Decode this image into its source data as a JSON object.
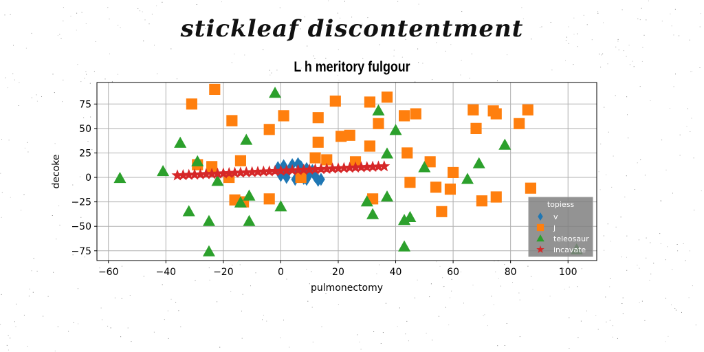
{
  "suptitle": "stickleaf discontentment",
  "chart_data": {
    "type": "scatter",
    "title": "L h meritory fulgour",
    "xlabel": "pulmonectomy",
    "ylabel": "decoke",
    "xlim": [
      -64,
      110
    ],
    "ylim": [
      -85,
      97
    ],
    "xticks": [
      -60,
      -40,
      -20,
      0,
      20,
      40,
      60,
      80,
      100
    ],
    "yticks": [
      -75,
      -50,
      -25,
      0,
      25,
      50,
      75
    ],
    "grid": true,
    "legend": {
      "title": "topiess",
      "placement": "lower-right"
    },
    "series": [
      {
        "name": "v",
        "marker": "diamond",
        "color": "#1f77b4",
        "points": [
          [
            -1,
            10
          ],
          [
            0,
            2
          ],
          [
            1,
            12
          ],
          [
            2,
            0
          ],
          [
            3,
            8
          ],
          [
            4,
            13
          ],
          [
            5,
            -2
          ],
          [
            6,
            5
          ],
          [
            7,
            11
          ],
          [
            8,
            -1
          ],
          [
            9,
            9
          ],
          [
            10,
            3
          ],
          [
            11,
            7
          ],
          [
            12,
            1
          ],
          [
            13,
            -3
          ],
          [
            14,
            -2
          ],
          [
            2,
            5
          ],
          [
            6,
            14
          ],
          [
            9,
            -2
          ]
        ]
      },
      {
        "name": "j",
        "marker": "square",
        "color": "#ff7f0e",
        "points": [
          [
            -23,
            90
          ],
          [
            -31,
            75
          ],
          [
            -17,
            58
          ],
          [
            -14,
            17
          ],
          [
            -4,
            49
          ],
          [
            1,
            63
          ],
          [
            13,
            61
          ],
          [
            13,
            36
          ],
          [
            19,
            78
          ],
          [
            21,
            42
          ],
          [
            24,
            43
          ],
          [
            26,
            16
          ],
          [
            31,
            77
          ],
          [
            31,
            32
          ],
          [
            32,
            -22
          ],
          [
            34,
            55
          ],
          [
            37,
            82
          ],
          [
            43,
            63
          ],
          [
            44,
            25
          ],
          [
            45,
            -5
          ],
          [
            47,
            65
          ],
          [
            52,
            16
          ],
          [
            54,
            -10
          ],
          [
            56,
            -35
          ],
          [
            59,
            -12
          ],
          [
            60,
            5
          ],
          [
            67,
            69
          ],
          [
            68,
            50
          ],
          [
            70,
            -24
          ],
          [
            74,
            68
          ],
          [
            75,
            -20
          ],
          [
            75,
            65
          ],
          [
            83,
            55
          ],
          [
            86,
            69
          ],
          [
            87,
            -11
          ],
          [
            -16,
            -23
          ],
          [
            -13,
            -25
          ],
          [
            -4,
            -22
          ],
          [
            -18,
            0
          ],
          [
            -24,
            11
          ],
          [
            -29,
            13
          ],
          [
            7,
            0
          ],
          [
            12,
            20
          ],
          [
            16,
            18
          ]
        ]
      },
      {
        "name": "teleosaur",
        "marker": "triangle",
        "color": "#2ca02c",
        "points": [
          [
            -56,
            -1
          ],
          [
            -41,
            6
          ],
          [
            -35,
            35
          ],
          [
            -32,
            -35
          ],
          [
            -29,
            16
          ],
          [
            -25,
            -45
          ],
          [
            -25,
            -76
          ],
          [
            -22,
            -4
          ],
          [
            -14,
            -26
          ],
          [
            -12,
            38
          ],
          [
            -11,
            -19
          ],
          [
            -11,
            -45
          ],
          [
            -2,
            86
          ],
          [
            0,
            -30
          ],
          [
            30,
            -25
          ],
          [
            32,
            -38
          ],
          [
            34,
            68
          ],
          [
            37,
            24
          ],
          [
            37,
            -20
          ],
          [
            40,
            48
          ],
          [
            43,
            -44
          ],
          [
            43,
            -71
          ],
          [
            45,
            -41
          ],
          [
            50,
            10
          ],
          [
            65,
            -2
          ],
          [
            69,
            14
          ],
          [
            78,
            33
          ],
          [
            103,
            -74
          ]
        ]
      },
      {
        "name": "incavate",
        "marker": "star",
        "color": "#d62728",
        "points": [
          [
            -36,
            2
          ],
          [
            -34,
            2.2
          ],
          [
            -32,
            2.5
          ],
          [
            -30,
            2.8
          ],
          [
            -28,
            3
          ],
          [
            -26,
            3.3
          ],
          [
            -24,
            3.5
          ],
          [
            -22,
            3.8
          ],
          [
            -20,
            4
          ],
          [
            -18,
            4.3
          ],
          [
            -16,
            4.6
          ],
          [
            -14,
            4.8
          ],
          [
            -12,
            5.1
          ],
          [
            -10,
            5.3
          ],
          [
            -8,
            5.6
          ],
          [
            -6,
            5.9
          ],
          [
            -4,
            6.1
          ],
          [
            -2,
            6.4
          ],
          [
            0,
            6.6
          ],
          [
            2,
            6.9
          ],
          [
            4,
            7.2
          ],
          [
            6,
            7.4
          ],
          [
            8,
            7.7
          ],
          [
            10,
            7.9
          ],
          [
            12,
            8.2
          ],
          [
            14,
            8.5
          ],
          [
            16,
            8.7
          ],
          [
            18,
            9
          ],
          [
            20,
            9.2
          ],
          [
            22,
            9.5
          ],
          [
            24,
            9.8
          ],
          [
            26,
            10
          ],
          [
            28,
            10.3
          ],
          [
            30,
            10.5
          ],
          [
            32,
            10.8
          ],
          [
            34,
            11
          ],
          [
            36,
            11.3
          ]
        ]
      }
    ]
  }
}
